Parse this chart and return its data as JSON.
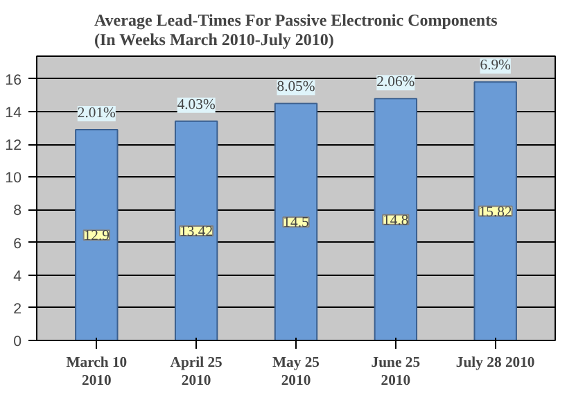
{
  "chart_data": {
    "type": "bar",
    "title": "Average Lead-Times For Passive Electronic Components\n(In Weeks March 2010-July 2010)",
    "categories": [
      "March 10\n2010",
      "April 25\n2010",
      "May 25\n2010",
      "June 25\n2010",
      "July 28 2010"
    ],
    "values": [
      12.9,
      13.42,
      14.5,
      14.8,
      15.82
    ],
    "color": "#6a9bd6",
    "data_labels": true,
    "annotations": [
      {
        "text": "2.01%",
        "x": "March 10\n2010",
        "y": 12.9
      },
      {
        "text": "4.03%",
        "x": "April 25\n2010",
        "y": 13.42
      },
      {
        "text": "8.05%",
        "x": "May 25\n2010",
        "y": 14.5
      },
      {
        "text": "2.06%",
        "x": "June 25\n2010",
        "y": 14.8
      },
      {
        "text": "6.9%",
        "x": "July 28 2010",
        "y": 15.82
      }
    ],
    "ylim": [
      0,
      17.4
    ],
    "yticks": [
      0,
      2,
      4,
      6,
      8,
      10,
      12,
      14,
      16
    ],
    "grid": "y"
  }
}
